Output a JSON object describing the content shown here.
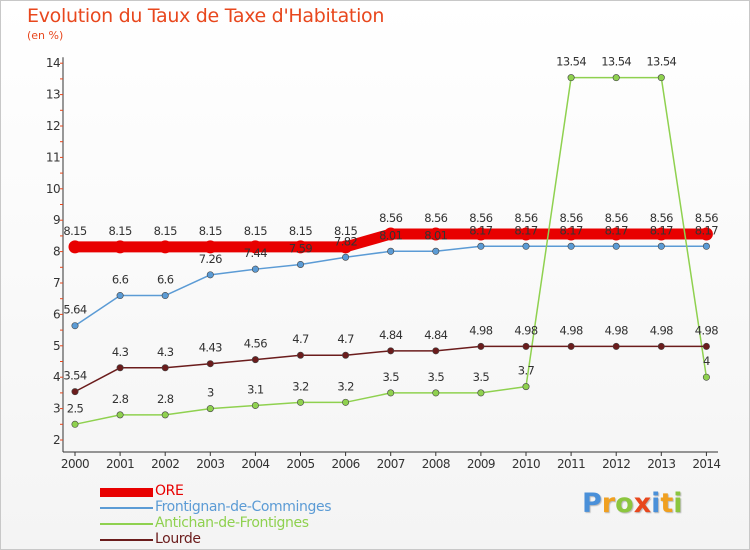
{
  "header": {
    "title": "Evolution du Taux de Taxe d'Habitation",
    "subtitle": "(en %)"
  },
  "chart_data": {
    "type": "line",
    "title": "Evolution du Taux de Taxe d'Habitation",
    "ylabel": "(en %)",
    "xlabel": "",
    "categories": [
      "2000",
      "2001",
      "2002",
      "2003",
      "2004",
      "2005",
      "2006",
      "2007",
      "2008",
      "2009",
      "2010",
      "2011",
      "2012",
      "2013",
      "2014"
    ],
    "ylim": [
      2,
      14
    ],
    "yticks": [
      "2",
      "3",
      "4",
      "5",
      "6",
      "7",
      "8",
      "9",
      "10",
      "11",
      "12",
      "13",
      "14"
    ],
    "grid": false,
    "legend": "bottom-left",
    "series": [
      {
        "name": "ORE",
        "color": "#e80000",
        "values": [
          8.15,
          8.15,
          8.15,
          8.15,
          8.15,
          8.15,
          8.15,
          8.56,
          8.56,
          8.56,
          8.56,
          8.56,
          8.56,
          8.56,
          8.56
        ],
        "labels": [
          "8.15",
          "8.15",
          "8.15",
          "8.15",
          "8.15",
          "8.15",
          "8.15",
          "8.56",
          "8.56",
          "8.56",
          "8.56",
          "8.56",
          "8.56",
          "8.56",
          "8.56"
        ]
      },
      {
        "name": "Frontignan-de-Comminges",
        "color": "#5b9bd5",
        "values": [
          5.64,
          6.6,
          6.6,
          7.26,
          7.44,
          7.59,
          7.82,
          8.01,
          8.01,
          8.17,
          8.17,
          8.17,
          8.17,
          8.17,
          8.17
        ],
        "labels": [
          "5.64",
          "6.6",
          "6.6",
          "7.26",
          "7.44",
          "7.59",
          "7.82",
          "8.01",
          "8.01",
          "8.17",
          "8.17",
          "8.17",
          "8.17",
          "8.17",
          "8.17"
        ]
      },
      {
        "name": "Antichan-de-Frontignes",
        "color": "#8fd14f",
        "values": [
          2.5,
          2.8,
          2.8,
          3,
          3.1,
          3.2,
          3.2,
          3.5,
          3.5,
          3.5,
          3.7,
          13.54,
          13.54,
          13.54,
          4
        ],
        "labels": [
          "2.5",
          "2.8",
          "2.8",
          "3",
          "3.1",
          "3.2",
          "3.2",
          "3.5",
          "3.5",
          "3.5",
          "3.7",
          "13.54",
          "13.54",
          "13.54",
          "4"
        ]
      },
      {
        "name": "Lourde",
        "color": "#6b1c1c",
        "values": [
          3.54,
          4.3,
          4.3,
          4.43,
          4.56,
          4.7,
          4.7,
          4.84,
          4.84,
          4.98,
          4.98,
          4.98,
          4.98,
          4.98,
          4.98
        ],
        "labels": [
          "3.54",
          "4.3",
          "4.3",
          "4.43",
          "4.56",
          "4.7",
          "4.7",
          "4.84",
          "4.84",
          "4.98",
          "4.98",
          "4.98",
          "4.98",
          "4.98",
          "4.98"
        ]
      }
    ]
  },
  "branding": {
    "logo_letters": [
      "P",
      "r",
      "o",
      "x",
      "i",
      "t",
      "i"
    ],
    "logo_colors": [
      "#4a90d9",
      "#f0a020",
      "#8cc63f",
      "#e8471d",
      "#4a90d9",
      "#f0a020",
      "#8cc63f"
    ]
  }
}
